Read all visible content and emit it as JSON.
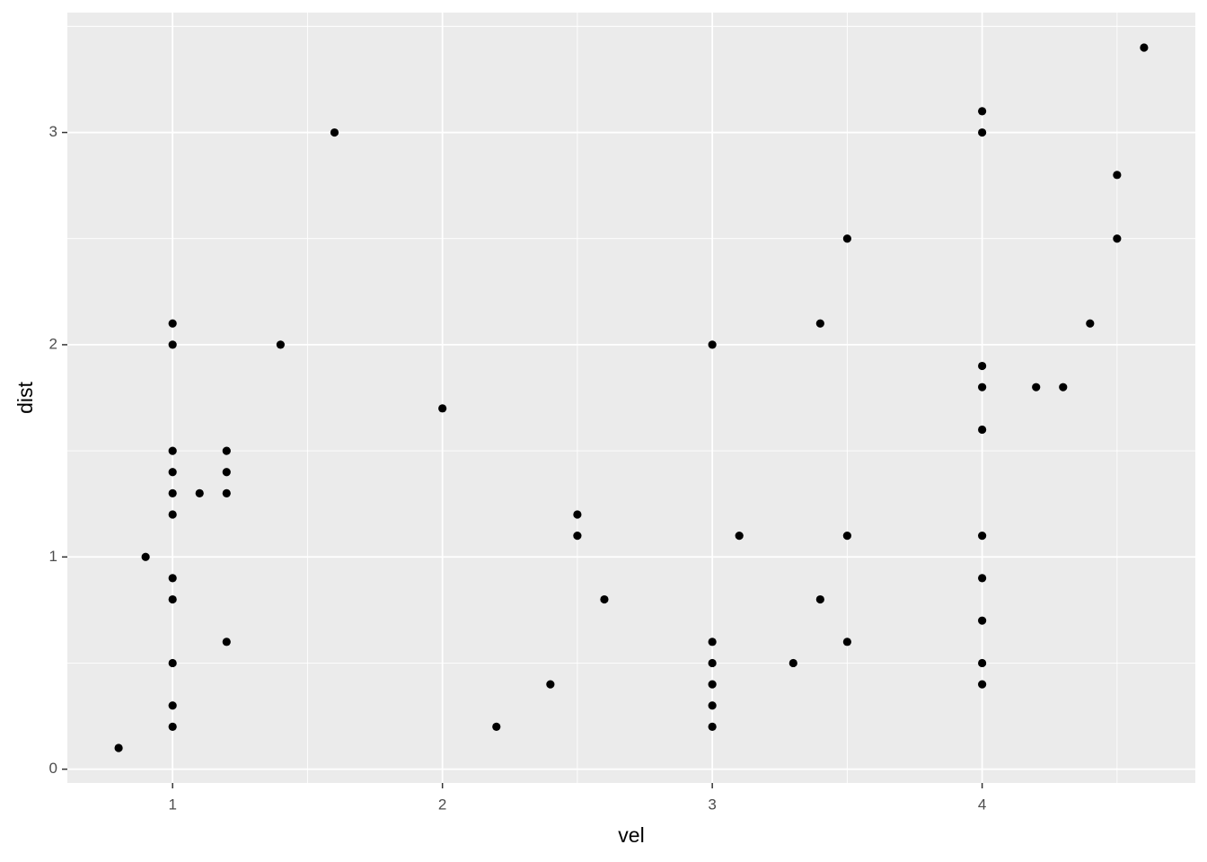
{
  "chart_data": {
    "type": "scatter",
    "x_label": "vel",
    "y_label": "dist",
    "x": [
      0.8,
      0.9,
      1,
      1,
      1,
      1,
      1,
      1,
      1,
      1,
      1,
      1,
      1,
      1.1,
      1.2,
      1.2,
      1.2,
      1.2,
      1.4,
      1.6,
      2.0,
      2.2,
      2.4,
      2.5,
      2.5,
      2.6,
      3,
      3,
      3,
      3,
      3,
      3,
      3.1,
      3.3,
      3.4,
      3.4,
      3.5,
      3.5,
      3.5,
      4,
      4,
      4,
      4,
      4,
      4,
      4,
      4,
      4,
      4,
      4.2,
      4.3,
      4.4,
      4.5,
      4.5,
      4.6
    ],
    "y": [
      0.1,
      1.0,
      2.1,
      2.0,
      1.5,
      1.4,
      1.3,
      1.2,
      0.9,
      0.8,
      0.5,
      0.3,
      0.2,
      1.3,
      1.5,
      1.4,
      1.3,
      0.6,
      2.0,
      3.0,
      1.7,
      0.2,
      0.4,
      1.2,
      1.1,
      0.8,
      2.0,
      0.6,
      0.5,
      0.4,
      0.3,
      0.2,
      1.1,
      0.5,
      2.1,
      0.8,
      2.5,
      1.1,
      0.6,
      3.1,
      3.0,
      1.9,
      1.8,
      1.6,
      1.1,
      0.9,
      0.7,
      0.5,
      0.4,
      1.8,
      1.8,
      2.1,
      2.8,
      2.5,
      3.4
    ],
    "color": "#000000",
    "xlim": [
      0.61,
      4.79
    ],
    "ylim": [
      -0.065,
      3.565
    ],
    "xticks": [
      1,
      2,
      3,
      4
    ],
    "yticks": [
      0,
      1,
      2,
      3
    ],
    "grid": true
  }
}
